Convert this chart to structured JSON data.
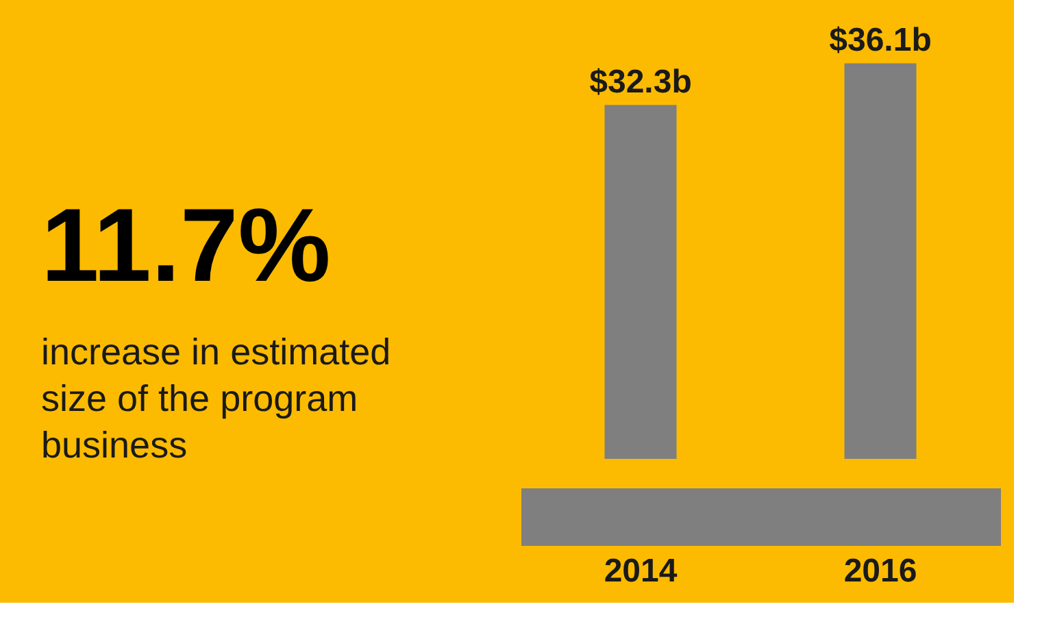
{
  "chart_data": {
    "type": "bar",
    "categories": [
      "2014",
      "2016"
    ],
    "values": [
      32.3,
      36.1
    ],
    "value_labels": [
      "$32.3b",
      "$36.1b"
    ],
    "color": "#7f7f7f",
    "tick_labels": "x",
    "grid": false,
    "annotations": [
      "11.7%",
      "increase in estimated\nsize of the program\nbusiness"
    ]
  }
}
